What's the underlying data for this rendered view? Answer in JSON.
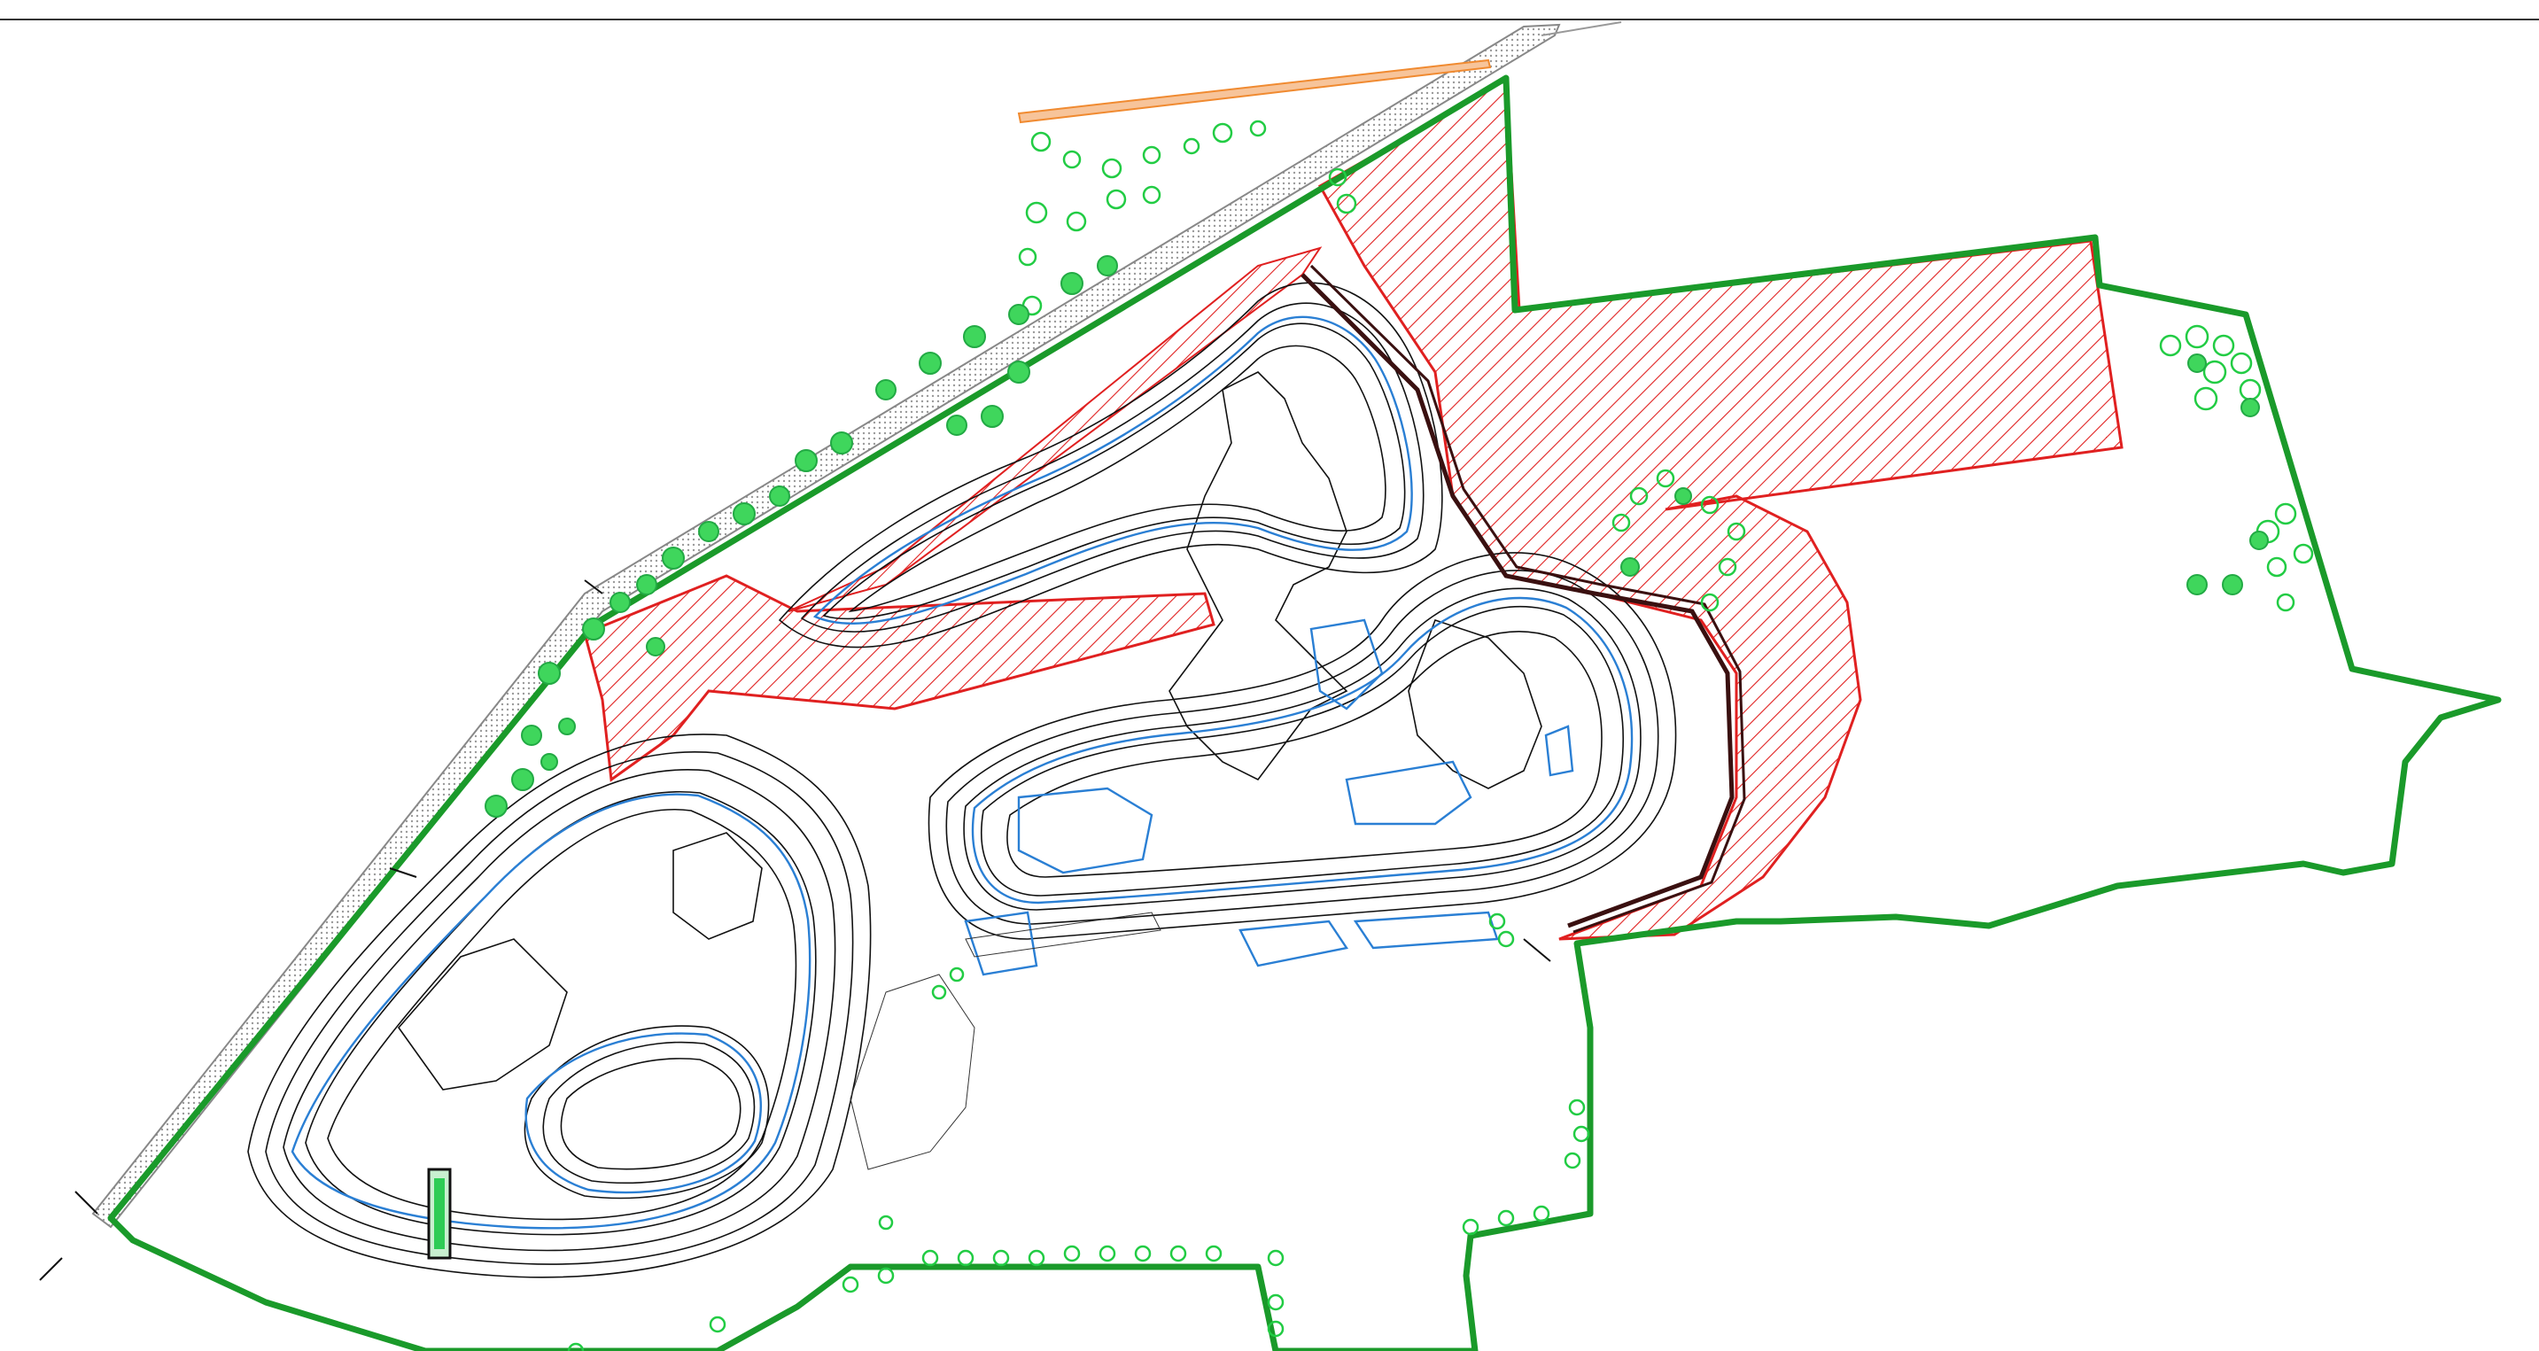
{
  "drawing": {
    "type": "site-plan",
    "layers": [
      {
        "name": "site-boundary",
        "color": "#1a9a2a"
      },
      {
        "name": "contour-lines",
        "color": "#111111"
      },
      {
        "name": "water-contours",
        "color": "#2a7fd4"
      },
      {
        "name": "hatched-area",
        "color": "#e02020"
      },
      {
        "name": "trees",
        "color": "#22cc44"
      },
      {
        "name": "road-verge",
        "color": "#999999"
      },
      {
        "name": "fence-line",
        "color": "#f08a30"
      }
    ]
  }
}
